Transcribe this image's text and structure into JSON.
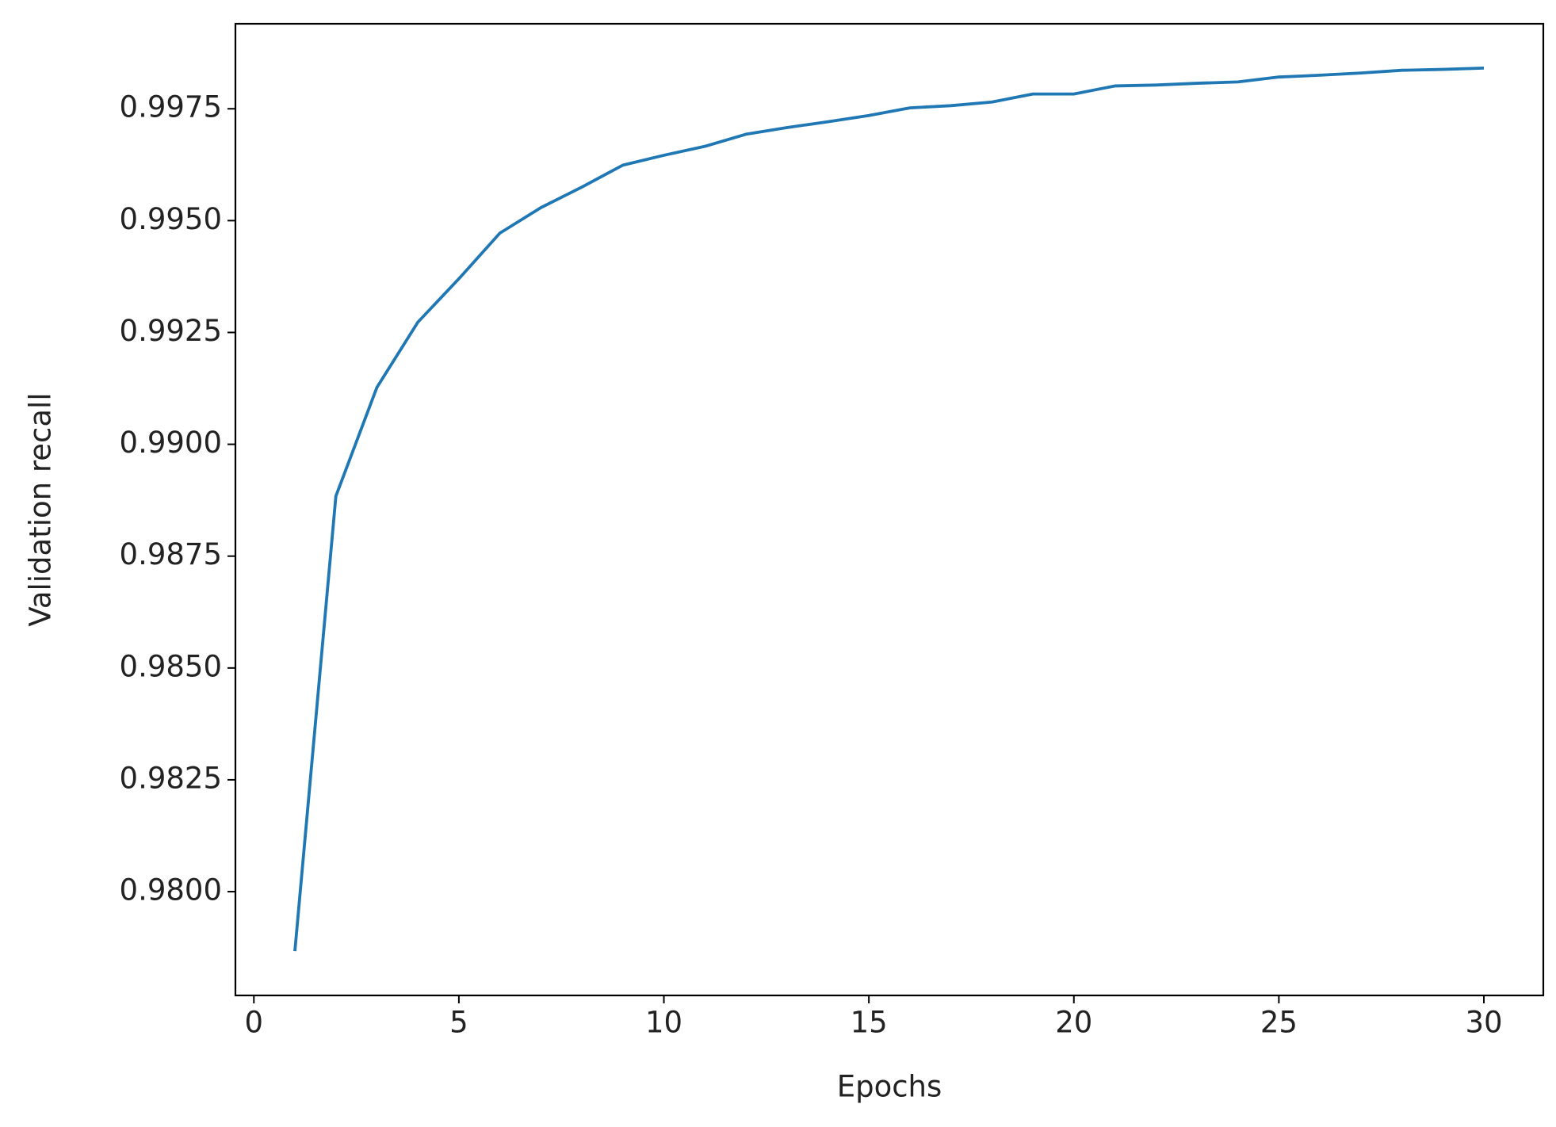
{
  "chart_data": {
    "type": "line",
    "x_label": "Epochs",
    "y_label": "Validation recall",
    "x": [
      1,
      2,
      3,
      4,
      5,
      6,
      7,
      8,
      9,
      10,
      11,
      12,
      13,
      14,
      15,
      16,
      17,
      18,
      19,
      20,
      21,
      22,
      23,
      24,
      25,
      26,
      27,
      28,
      29,
      30
    ],
    "series": [
      {
        "color": "#1f77b4",
        "values": [
          0.97867,
          0.98884,
          0.99127,
          0.99273,
          0.9937,
          0.99472,
          0.99529,
          0.99575,
          0.99624,
          0.99646,
          0.99666,
          0.99693,
          0.99708,
          0.99721,
          0.99735,
          0.99752,
          0.99757,
          0.99765,
          0.99783,
          0.99783,
          0.99801,
          0.99803,
          0.99807,
          0.9981,
          0.99821,
          0.99825,
          0.9983,
          0.99836,
          0.99838,
          0.99841
        ]
      }
    ],
    "xlim": [
      -0.45,
      31.45
    ],
    "xticks": [
      0,
      5,
      10,
      15,
      20,
      25,
      30
    ],
    "ylim": [
      0.97768,
      0.9994
    ],
    "yticks": [
      {
        "value": 0.98,
        "label": "0.9800"
      },
      0.9825,
      {
        "value": 0.985,
        "label": "0.9850"
      },
      0.9875,
      {
        "value": 0.99,
        "label": "0.9900"
      },
      0.9925,
      {
        "value": 0.995,
        "label": "0.9950"
      },
      0.9975
    ],
    "grid": false
  }
}
